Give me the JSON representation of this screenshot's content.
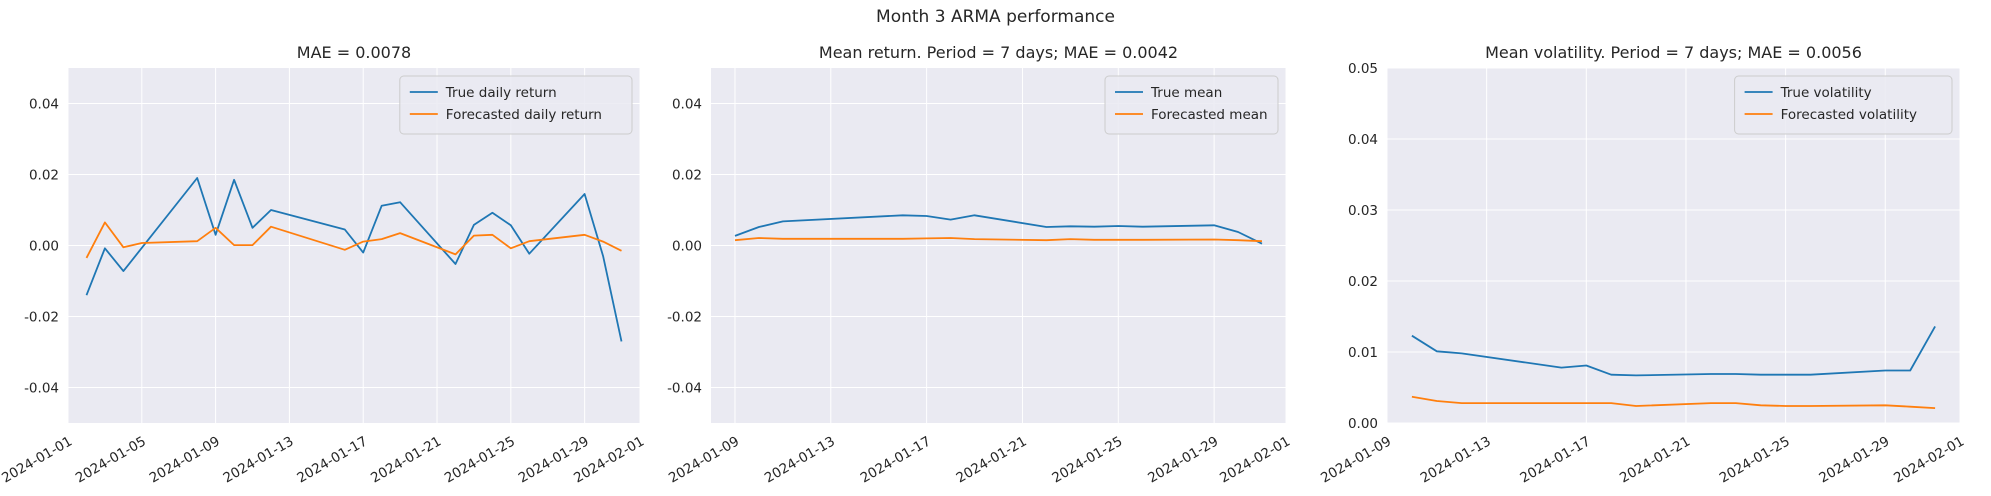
{
  "suptitle": "Month 3 ARMA performance",
  "colors": {
    "true": "#1f77b4",
    "forecast": "#ff7f0e",
    "panel_bg": "#eaeaf2",
    "grid": "#ffffff"
  },
  "chart_data": [
    {
      "type": "line",
      "title": "MAE = 0.0078",
      "xlim": [
        "2024-01-01",
        "2024-02-01"
      ],
      "xticks": [
        "2024-01-01",
        "2024-01-05",
        "2024-01-09",
        "2024-01-13",
        "2024-01-17",
        "2024-01-21",
        "2024-01-25",
        "2024-01-29",
        "2024-02-01"
      ],
      "ylim": [
        -0.05,
        0.05
      ],
      "yticks": [
        -0.04,
        -0.02,
        0.0,
        0.02,
        0.04
      ],
      "grid": true,
      "legend": "top-right",
      "series": [
        {
          "name": "True daily return",
          "color": "#1f77b4",
          "x": [
            "2024-01-02",
            "2024-01-03",
            "2024-01-04",
            "2024-01-08",
            "2024-01-09",
            "2024-01-10",
            "2024-01-11",
            "2024-01-12",
            "2024-01-16",
            "2024-01-17",
            "2024-01-18",
            "2024-01-19",
            "2024-01-22",
            "2024-01-23",
            "2024-01-24",
            "2024-01-25",
            "2024-01-26",
            "2024-01-29",
            "2024-01-30",
            "2024-01-31"
          ],
          "y": [
            -0.014,
            -0.0008,
            -0.0072,
            0.019,
            0.003,
            0.0185,
            0.005,
            0.01,
            0.0045,
            -0.002,
            0.0112,
            0.0122,
            -0.0052,
            0.0058,
            0.0092,
            0.0057,
            -0.0023,
            0.0145,
            -0.003,
            -0.027
          ]
        },
        {
          "name": "Forecasted daily return",
          "color": "#ff7f0e",
          "x": [
            "2024-01-02",
            "2024-01-03",
            "2024-01-04",
            "2024-01-05",
            "2024-01-08",
            "2024-01-09",
            "2024-01-10",
            "2024-01-11",
            "2024-01-12",
            "2024-01-16",
            "2024-01-17",
            "2024-01-18",
            "2024-01-19",
            "2024-01-22",
            "2024-01-23",
            "2024-01-24",
            "2024-01-25",
            "2024-01-26",
            "2024-01-29",
            "2024-01-30",
            "2024-01-31"
          ],
          "y": [
            -0.0035,
            0.0065,
            -0.0005,
            0.0007,
            0.0012,
            0.005,
            0.0001,
            0.0001,
            0.0053,
            -0.0012,
            0.0011,
            0.0018,
            0.0035,
            -0.0025,
            0.0028,
            0.003,
            -0.0008,
            0.0012,
            0.003,
            0.0011,
            -0.0015
          ]
        }
      ]
    },
    {
      "type": "line",
      "title": "Mean return. Period = 7 days; MAE = 0.0042",
      "xlim": [
        "2024-01-08",
        "2024-02-01"
      ],
      "xticks": [
        "2024-01-09",
        "2024-01-13",
        "2024-01-17",
        "2024-01-21",
        "2024-01-25",
        "2024-01-29",
        "2024-02-01"
      ],
      "ylim": [
        -0.05,
        0.05
      ],
      "yticks": [
        -0.04,
        -0.02,
        0.0,
        0.02,
        0.04
      ],
      "grid": true,
      "legend": "top-right",
      "series": [
        {
          "name": "True mean",
          "color": "#1f77b4",
          "x": [
            "2024-01-09",
            "2024-01-10",
            "2024-01-11",
            "2024-01-16",
            "2024-01-17",
            "2024-01-18",
            "2024-01-19",
            "2024-01-22",
            "2024-01-23",
            "2024-01-24",
            "2024-01-25",
            "2024-01-26",
            "2024-01-29",
            "2024-01-30",
            "2024-01-31"
          ],
          "y": [
            0.0027,
            0.0052,
            0.0068,
            0.0085,
            0.0083,
            0.0073,
            0.0085,
            0.0052,
            0.0054,
            0.0053,
            0.0055,
            0.0053,
            0.0057,
            0.0038,
            0.0005
          ]
        },
        {
          "name": "Forecasted mean",
          "color": "#ff7f0e",
          "x": [
            "2024-01-09",
            "2024-01-10",
            "2024-01-11",
            "2024-01-16",
            "2024-01-17",
            "2024-01-18",
            "2024-01-19",
            "2024-01-22",
            "2024-01-23",
            "2024-01-24",
            "2024-01-25",
            "2024-01-26",
            "2024-01-29",
            "2024-01-30",
            "2024-01-31"
          ],
          "y": [
            0.0015,
            0.0021,
            0.0019,
            0.0019,
            0.002,
            0.0021,
            0.0018,
            0.0015,
            0.0018,
            0.0016,
            0.0016,
            0.0016,
            0.0017,
            0.0015,
            0.0012
          ]
        }
      ]
    },
    {
      "type": "line",
      "title": "Mean volatility. Period = 7 days; MAE = 0.0056",
      "xlim": [
        "2024-01-09",
        "2024-02-01"
      ],
      "xticks": [
        "2024-01-09",
        "2024-01-13",
        "2024-01-17",
        "2024-01-21",
        "2024-01-25",
        "2024-01-29",
        "2024-02-01"
      ],
      "ylim": [
        0,
        0.05
      ],
      "yticks": [
        0.0,
        0.01,
        0.02,
        0.03,
        0.04,
        0.05
      ],
      "grid": true,
      "legend": "top-right",
      "series": [
        {
          "name": "True volatility",
          "color": "#1f77b4",
          "x": [
            "2024-01-10",
            "2024-01-11",
            "2024-01-12",
            "2024-01-16",
            "2024-01-17",
            "2024-01-18",
            "2024-01-19",
            "2024-01-22",
            "2024-01-23",
            "2024-01-24",
            "2024-01-25",
            "2024-01-26",
            "2024-01-29",
            "2024-01-30",
            "2024-01-31"
          ],
          "y": [
            0.0123,
            0.0101,
            0.0098,
            0.0078,
            0.0081,
            0.0068,
            0.0067,
            0.0069,
            0.0069,
            0.0068,
            0.0068,
            0.0068,
            0.0074,
            0.0074,
            0.0136
          ]
        },
        {
          "name": "Forecasted volatility",
          "color": "#ff7f0e",
          "x": [
            "2024-01-10",
            "2024-01-11",
            "2024-01-12",
            "2024-01-16",
            "2024-01-17",
            "2024-01-18",
            "2024-01-19",
            "2024-01-22",
            "2024-01-23",
            "2024-01-24",
            "2024-01-25",
            "2024-01-26",
            "2024-01-29",
            "2024-01-30",
            "2024-01-31"
          ],
          "y": [
            0.0037,
            0.0031,
            0.0028,
            0.0028,
            0.0028,
            0.0028,
            0.0024,
            0.0028,
            0.0028,
            0.0025,
            0.0024,
            0.0024,
            0.0025,
            0.0023,
            0.0021
          ]
        }
      ]
    }
  ]
}
